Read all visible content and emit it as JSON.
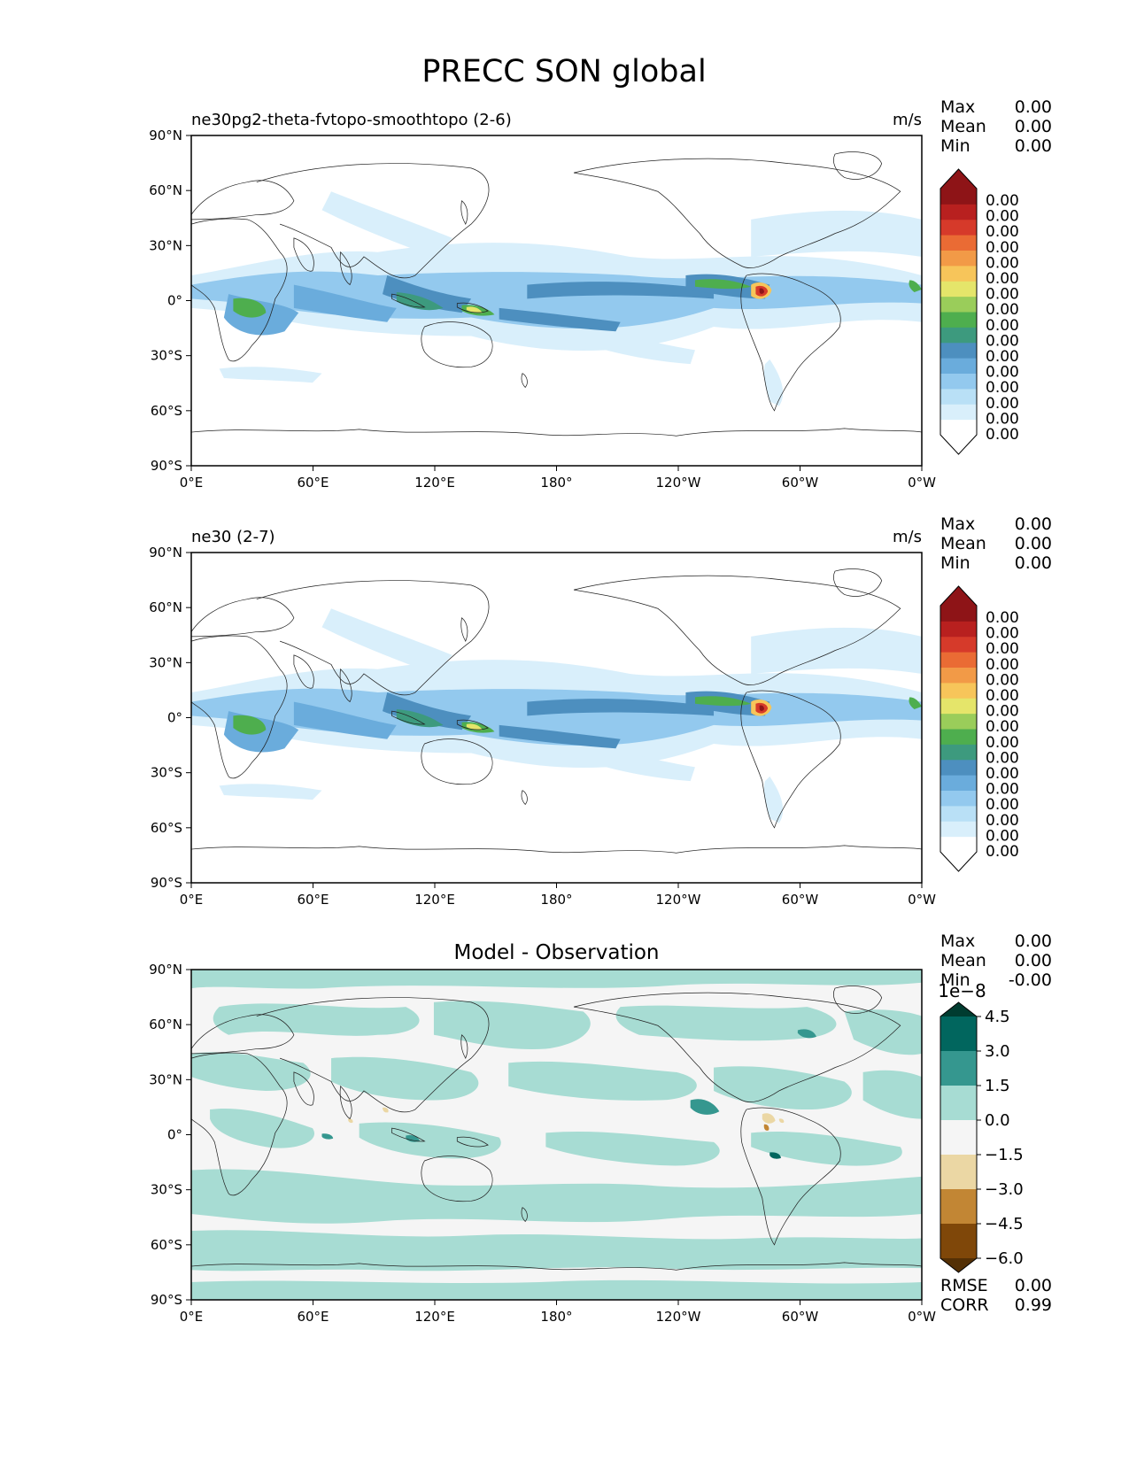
{
  "title": "PRECC SON global",
  "chart_data": [
    {
      "type": "heatmap",
      "title": "ne30pg2-theta-fvtopo-smoothtopo (2-6)",
      "units": "m/s",
      "stats": [
        {
          "label": "Max",
          "value": "0.00"
        },
        {
          "label": "Mean",
          "value": "0.00"
        },
        {
          "label": "Min",
          "value": "0.00"
        }
      ],
      "xticks": [
        "0°E",
        "60°E",
        "120°E",
        "180°",
        "120°W",
        "60°W",
        "0°W"
      ],
      "yticks": [
        "90°N",
        "60°N",
        "30°N",
        "0°",
        "30°S",
        "60°S",
        "90°S"
      ],
      "colorbar": {
        "labels": [
          "0.00",
          "0.00",
          "0.00",
          "0.00",
          "0.00",
          "0.00",
          "0.00",
          "0.00",
          "0.00",
          "0.00",
          "0.00",
          "0.00",
          "0.00",
          "0.00",
          "0.00",
          "0.00"
        ],
        "colors": [
          "#ffffff",
          "#d9effb",
          "#b9e0f6",
          "#93c9ee",
          "#6aacdc",
          "#4d8fbf",
          "#3d9a7e",
          "#4eae4e",
          "#9acd5a",
          "#e5e56a",
          "#f7c55a",
          "#f29a47",
          "#ea6b34",
          "#d63a2a",
          "#b8201f",
          "#8e1417"
        ],
        "extend": "both"
      }
    },
    {
      "type": "heatmap",
      "title": "ne30 (2-7)",
      "units": "m/s",
      "stats": [
        {
          "label": "Max",
          "value": "0.00"
        },
        {
          "label": "Mean",
          "value": "0.00"
        },
        {
          "label": "Min",
          "value": "0.00"
        }
      ],
      "xticks": [
        "0°E",
        "60°E",
        "120°E",
        "180°",
        "120°W",
        "60°W",
        "0°W"
      ],
      "yticks": [
        "90°N",
        "60°N",
        "30°N",
        "0°",
        "30°S",
        "60°S",
        "90°S"
      ],
      "colorbar": {
        "labels": [
          "0.00",
          "0.00",
          "0.00",
          "0.00",
          "0.00",
          "0.00",
          "0.00",
          "0.00",
          "0.00",
          "0.00",
          "0.00",
          "0.00",
          "0.00",
          "0.00",
          "0.00",
          "0.00"
        ],
        "colors": [
          "#ffffff",
          "#d9effb",
          "#b9e0f6",
          "#93c9ee",
          "#6aacdc",
          "#4d8fbf",
          "#3d9a7e",
          "#4eae4e",
          "#9acd5a",
          "#e5e56a",
          "#f7c55a",
          "#f29a47",
          "#ea6b34",
          "#d63a2a",
          "#b8201f",
          "#8e1417"
        ],
        "extend": "both"
      }
    },
    {
      "type": "heatmap",
      "title": "Model - Observation",
      "units": "",
      "stats": [
        {
          "label": "Max",
          "value": "0.00"
        },
        {
          "label": "Mean",
          "value": "0.00"
        },
        {
          "label": "Min",
          "value": "-0.00"
        }
      ],
      "xticks": [
        "0°E",
        "60°E",
        "120°E",
        "180°",
        "120°W",
        "60°W",
        "0°W"
      ],
      "yticks": [
        "90°N",
        "60°N",
        "30°N",
        "0°",
        "30°S",
        "60°S",
        "90°S"
      ],
      "colorbar": {
        "scale_label": "1e−8",
        "labels": [
          "4.5",
          "3.0",
          "1.5",
          "0.0",
          "−1.5",
          "−3.0",
          "−4.5",
          "−6.0"
        ],
        "values": [
          4.5,
          3.0,
          1.5,
          0.0,
          -1.5,
          -3.0,
          -4.5,
          -6.0
        ],
        "colors": [
          "#01665e",
          "#35978f",
          "#a7dcd3",
          "#f5f5f5",
          "#ebd7a4",
          "#c28634",
          "#7f4709"
        ],
        "extend": "both"
      },
      "metrics": [
        {
          "label": "RMSE",
          "value": "0.00"
        },
        {
          "label": "CORR",
          "value": "0.99"
        }
      ]
    }
  ]
}
